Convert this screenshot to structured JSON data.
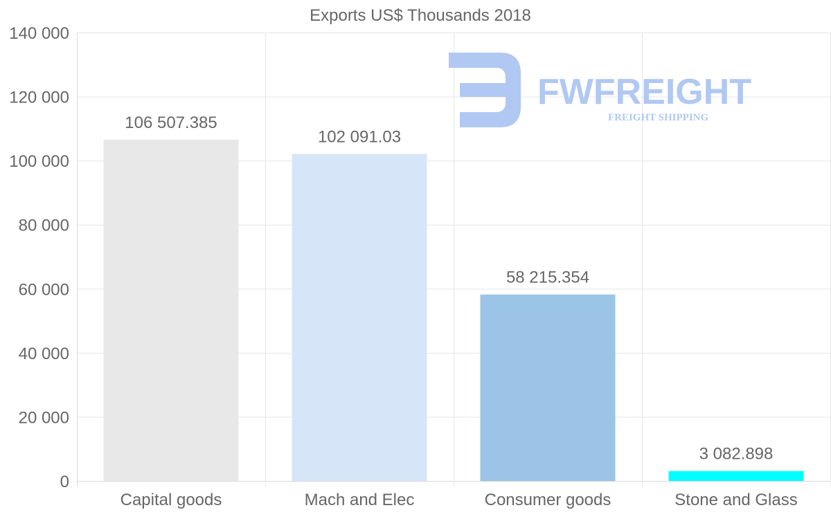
{
  "chart_data": {
    "type": "bar",
    "title": "Exports US$ Thousands 2018",
    "categories": [
      "Capital goods",
      "Mach and Elec",
      "Consumer goods",
      "Stone and Glass"
    ],
    "values": [
      106507.385,
      102091.03,
      58215.354,
      3082.898
    ],
    "value_labels": [
      "106 507.385",
      "102 091.03",
      "58 215.354",
      "3 082.898"
    ],
    "colors": [
      "#e8e8e8",
      "#d6e6f8",
      "#9cc4e6",
      "#00ffff"
    ],
    "ylim": [
      0,
      140000
    ],
    "yticks": [
      0,
      20000,
      40000,
      60000,
      80000,
      100000,
      120000,
      140000
    ],
    "ytick_labels": [
      "0",
      "20 000",
      "40 000",
      "60 000",
      "80 000",
      "100 000",
      "120 000",
      "140 000"
    ],
    "xlabel": "",
    "ylabel": "",
    "grid": true
  },
  "watermark": {
    "brand": "FWFREIGHT",
    "tagline": "FREIGHT SHIPPING",
    "color": "#b0c8f2"
  }
}
